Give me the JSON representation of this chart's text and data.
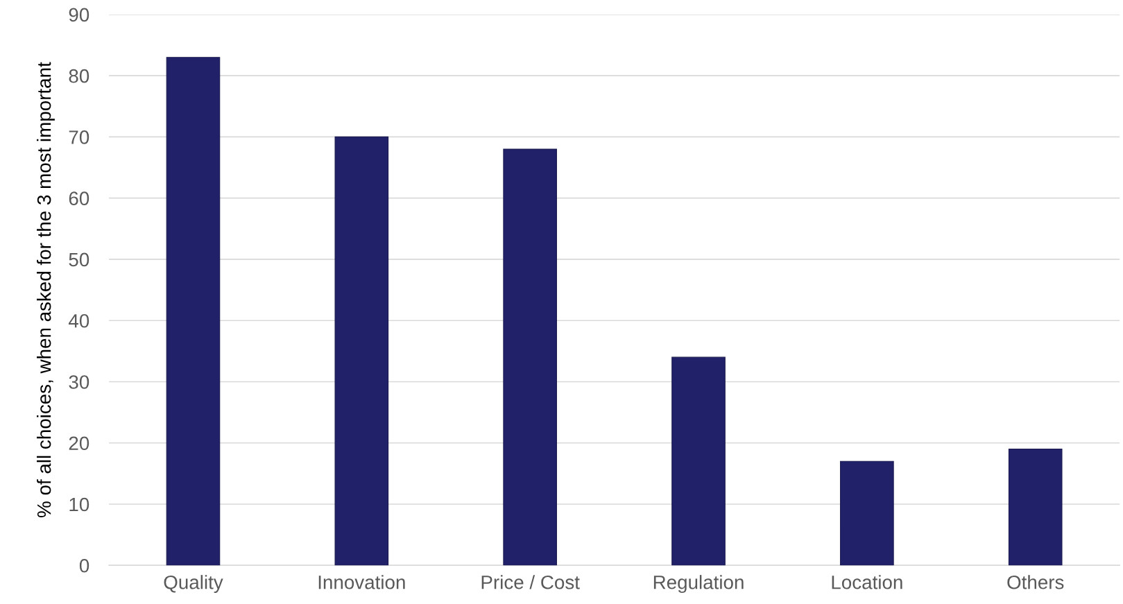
{
  "chart_data": {
    "type": "bar",
    "ylabel": "% of all choices, when asked for the 3 most important",
    "categories": [
      "Quality",
      "Innovation",
      "Price / Cost",
      "Regulation",
      "Location",
      "Others"
    ],
    "values": [
      83,
      70,
      68,
      34,
      17,
      19
    ],
    "color": "#21216a",
    "ylim": [
      0,
      90
    ],
    "yticks": [
      0,
      10,
      20,
      30,
      40,
      50,
      60,
      70,
      80,
      90
    ],
    "grid": "y",
    "legend": false
  }
}
